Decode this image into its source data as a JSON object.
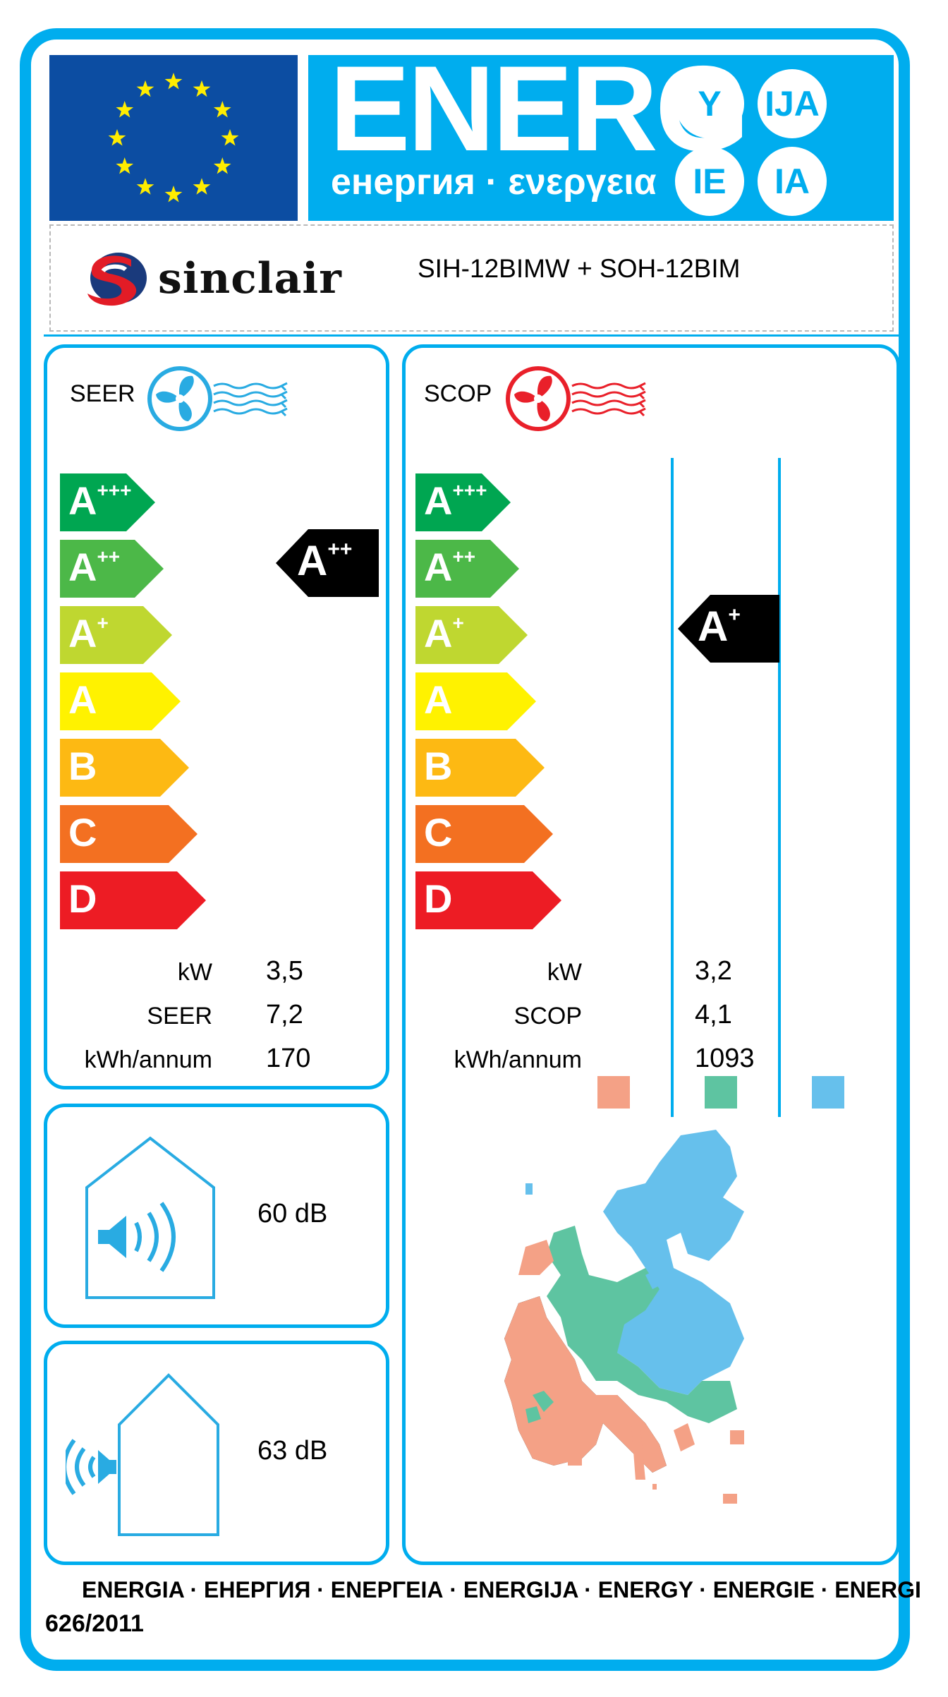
{
  "header": {
    "title_big": "ENERG",
    "title_sub": "енергия · ενεργεια",
    "suffixes": [
      "Y",
      "IJA",
      "IE",
      "IA"
    ]
  },
  "supplier": {
    "brand": "sinclair",
    "model": "SIH-12BIMW + SOH-12BIM"
  },
  "scale": [
    "A+++",
    "A++",
    "A+",
    "A",
    "B",
    "C",
    "D"
  ],
  "cooling": {
    "label": "SEER",
    "rating": "A++",
    "rows": [
      {
        "label": "kW",
        "value": "3,5"
      },
      {
        "label": "SEER",
        "value": "7,2"
      },
      {
        "label": "kWh/annum",
        "value": "170"
      }
    ]
  },
  "heating": {
    "label": "SCOP",
    "rating": "A+",
    "rows": [
      {
        "label": "kW",
        "value": "3,2"
      },
      {
        "label": "SCOP",
        "value": "4,1"
      },
      {
        "label": "kWh/annum",
        "value": "1093"
      }
    ],
    "zone_colors": [
      "#f4a186",
      "#5ec4a1",
      "#66c0ec"
    ]
  },
  "noise": {
    "indoor": "60 dB",
    "outdoor": "63 dB"
  },
  "footer": {
    "line1": "ENERGIA · ЕНЕРГИЯ · ΕΝΕΡΓΕΙΑ · ENERGIJA · ENERGY · ENERGIE · ENERGI",
    "regulation": "626/2011"
  },
  "colors": {
    "frame": "#00adee",
    "eu_blue": "#0c4da2",
    "stars": "#ffed00",
    "classes": [
      "#00a651",
      "#4cb848",
      "#bfd730",
      "#fff200",
      "#fdb913",
      "#f37021",
      "#ed1c24"
    ],
    "heat_fan": "#e9202a"
  }
}
